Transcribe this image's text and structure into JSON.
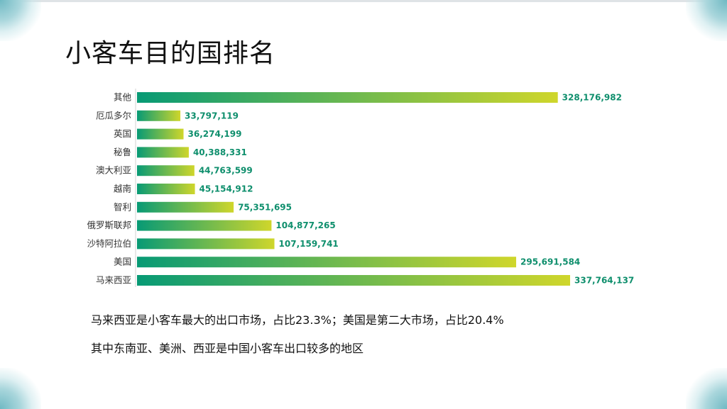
{
  "title": "小客车目的国排名",
  "chart_data": {
    "type": "bar",
    "orientation": "horizontal",
    "categories": [
      "其他",
      "厄瓜多尔",
      "英国",
      "秘鲁",
      "澳大利亚",
      "越南",
      "智利",
      "俄罗斯联邦",
      "沙特阿拉伯",
      "美国",
      "马来西亚"
    ],
    "values": [
      328176982,
      33797119,
      36274199,
      40388331,
      44763599,
      45154912,
      75351695,
      104877265,
      107159741,
      295691584,
      337764137
    ],
    "value_labels": [
      "328,176,982",
      "33,797,119",
      "36,274,199",
      "40,388,331",
      "44,763,599",
      "45,154,912",
      "75,351,695",
      "104,877,265",
      "107,159,741",
      "295,691,584",
      "337,764,137"
    ],
    "xlim": [
      0,
      337764137
    ],
    "grid": false,
    "colors": {
      "gradient_start": "#079a75",
      "gradient_end": "#cfd62b",
      "value_text": "#0f8f6d"
    }
  },
  "summary": {
    "line1": "马来西亚是小客车最大的出口市场，占比23.3%；美国是第二大市场，占比20.4%",
    "line2": "其中东南亚、美洲、西亚是中国小客车出口较多的地区"
  }
}
